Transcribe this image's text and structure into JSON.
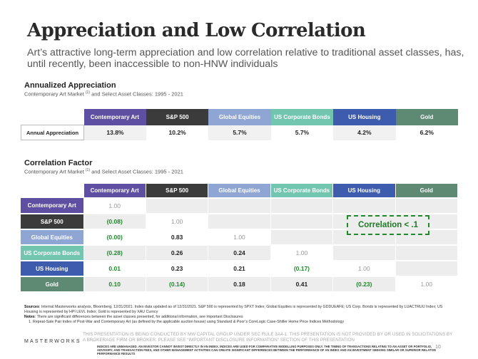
{
  "title": "Appreciation and Low Correlation",
  "subtitle": "Art’s attractive long-term appreciation and low correlation relative to traditional asset classes, has, until recently, been inaccessible to non-HNW individuals",
  "section1": {
    "title": "Annualized Appreciation",
    "subtitle_pre": "Contemporary Art Market ",
    "subtitle_sup": "(1)",
    "subtitle_post": " and Select Asset Classes: 1995 - 2021",
    "row_label": "Annual Appreciation",
    "headers": [
      "Contemporary Art",
      "S&P 500",
      "Global Equities",
      "US Corporate Bonds",
      "US Housing",
      "Gold"
    ],
    "values": [
      "13.8%",
      "10.2%",
      "5.7%",
      "5.7%",
      "4.2%",
      "6.2%"
    ]
  },
  "section2": {
    "title": "Correlation Factor",
    "subtitle_pre": "Contemporary Art Market ",
    "subtitle_sup": "(1)",
    "subtitle_post": " and Select Asset Classes: 1995 - 2021",
    "headers": [
      "Contemporary Art",
      "S&P 500",
      "Global Equities",
      "US Corporate Bonds",
      "US Housing",
      "Gold"
    ],
    "rows": [
      {
        "label": "Contemporary Art",
        "values": [
          "1.00"
        ]
      },
      {
        "label": "S&P 500",
        "values": [
          "(0.08)",
          "1.00"
        ]
      },
      {
        "label": "Global Equities",
        "values": [
          "(0.00)",
          "0.83",
          "1.00"
        ]
      },
      {
        "label": "US Corporate Bonds",
        "values": [
          "(0.28)",
          "0.26",
          "0.24",
          "1.00"
        ]
      },
      {
        "label": "US Housing",
        "values": [
          "0.01",
          "0.23",
          "0.21",
          "(0.17)",
          "1.00"
        ]
      },
      {
        "label": "Gold",
        "values": [
          "0.10",
          "(0.14)",
          "0.18",
          "0.41",
          "(0.23)",
          "1.00"
        ]
      }
    ],
    "callout": "Correlation < .1"
  },
  "colors": {
    "contemporary_art": "#5e4fa2",
    "sp500": "#3b3b3b",
    "global_equities": "#8fa6d4",
    "us_corporate_bonds": "#72c6b0",
    "us_housing": "#3e5cad",
    "gold": "#5e8a74",
    "highlight_green": "#1e8a2a"
  },
  "footer": {
    "sources_label": "Sources",
    "sources_text": ": Internal Masterworks analysis, Bloomberg, 12/31/2021. Index data updated as of 12/31/2021. S&P 500 is represented by SPXT Index; Global Equities is represented by GDDUEAFE; US Corp. Bonds is represented by LUACTRUU Index; US Housing is represented by HPI LEVL Index; Gold is represented by XAU Curncy",
    "notes_label": "Notes",
    "notes_text": ": There are significant differences between the asset classes presented, for additional information, see Important Disclosures",
    "footnote_1": "1.     Repeat-Sale Pair Index of Post-War and Contemporary Art (as defined by the applicable auction house) using Standard & Poor’s CoreLogic Case-Shiller Home Price Indices Methodology",
    "logo": "MASTERWORKS",
    "disclaimer": "THIS PRESENTATION IS BEING CONDUCTED BY MW CAPITAL GROUP UNDER SEC RULE 3A4-1. THIS PRESENTATION IS NOT PROVIDED BY OR USED IN SOLICITATIONS BY A BROKERAGE FIRM OR BROKER. PLEASE SEE “IMPORTANT DISCLOSURE INFORMATION” SECTION OF THIS PRESENTATION",
    "disclaimer_small": "INDICES ARE UNMANAGED. AN INVESTOR CANNOT INVEST DIRECTLY IN AN INDEX. INDICES ARE USED FOR COMPARATIVE MODELLING PURPOSES ONLY. THE TIMING OF TRANSACTIONS RELATING TO AN ASSET OR PORTFOLIO, ADVISORY, AND TRANSACTION FEES, AND OTHER MANAGEMENT ACTIVITIES CAN CREATE SIGNIFICANT DIFFERENCES BETWEEN THE PERFORMANCE OF AN INDEX AND AN INVESTMENT SEEKING SIMILAR OR SUPERIOR RELATIVE PERFORMANCE RESULTS",
    "page_number": "10"
  }
}
